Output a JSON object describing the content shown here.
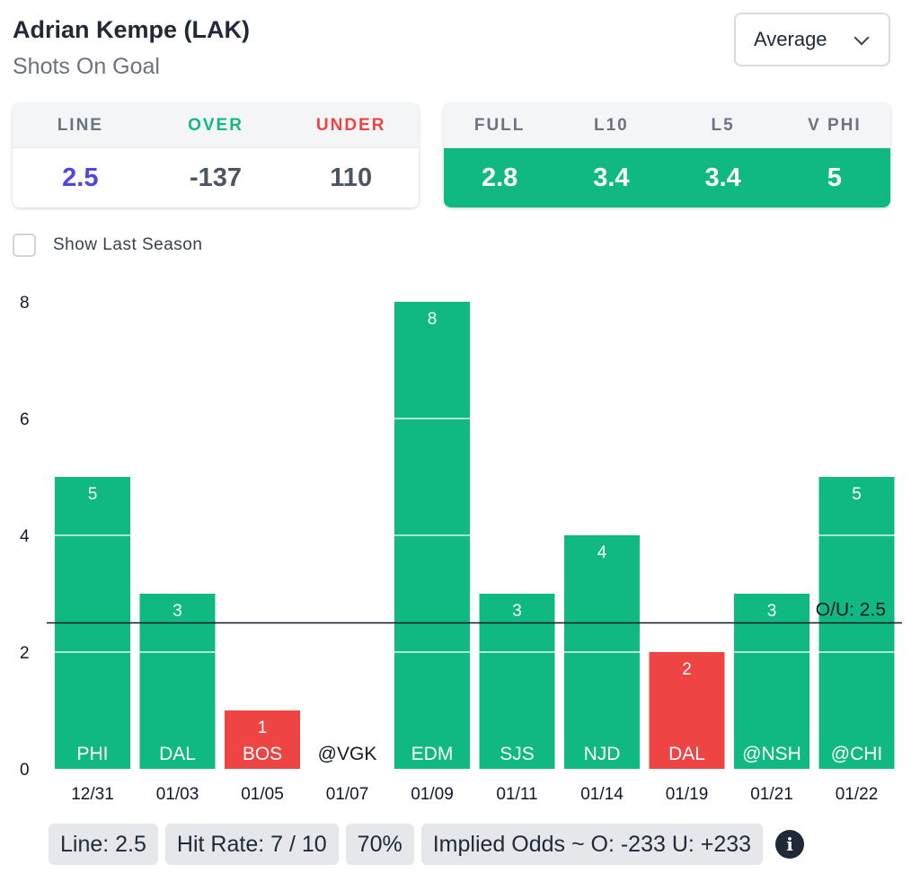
{
  "header": {
    "player": "Adrian Kempe (LAK)",
    "market": "Shots On Goal",
    "dropdown_value": "Average"
  },
  "line_card": {
    "headers": [
      "LINE",
      "OVER",
      "UNDER"
    ],
    "values": [
      "2.5",
      "-137",
      "110"
    ]
  },
  "avg_card": {
    "headers": [
      "FULL",
      "L10",
      "L5",
      "V PHI"
    ],
    "values": [
      "2.8",
      "3.4",
      "3.4",
      "5"
    ]
  },
  "options": {
    "show_last_season": "Show Last Season"
  },
  "chart_data": {
    "type": "bar",
    "categories": [
      "12/31",
      "01/03",
      "01/05",
      "01/07",
      "01/09",
      "01/11",
      "01/14",
      "01/19",
      "01/21",
      "01/22"
    ],
    "opponents": [
      "PHI",
      "DAL",
      "BOS",
      "@VGK",
      "EDM",
      "SJS",
      "NJD",
      "DAL",
      "@NSH",
      "@CHI"
    ],
    "values": [
      5,
      3,
      1,
      0,
      8,
      3,
      4,
      2,
      3,
      5
    ],
    "ylim": [
      0,
      8
    ],
    "yticks": [
      0,
      2,
      4,
      6,
      8
    ],
    "threshold": 2.5,
    "threshold_label": "O/U: 2.5",
    "colors": {
      "over": "#10b981",
      "under": "#ef4444"
    }
  },
  "footer": {
    "line": "Line: 2.5",
    "hit_rate": "Hit Rate: 7 / 10",
    "pct": "70%",
    "implied": "Implied Odds ~ O: -233 U: +233",
    "info_icon": "info-icon"
  }
}
